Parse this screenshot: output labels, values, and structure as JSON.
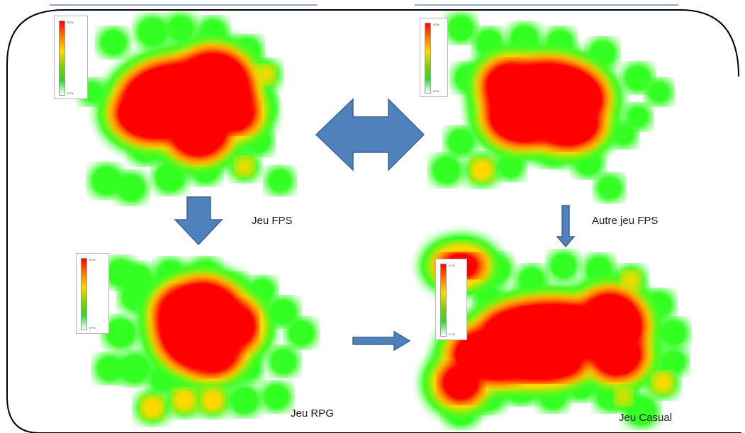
{
  "colors": {
    "frame": "#000000",
    "arrow_fill": "#4f81bd",
    "arrow_stroke": "#3a6496",
    "heat_low": "#33ff22",
    "heat_mid": "#ffd800",
    "heat_high": "#ff0000"
  },
  "panels": [
    {
      "id": "fps",
      "caption": "Jeu FPS",
      "scale_top": "5 Fix",
      "scale_bottom": "0 Fix"
    },
    {
      "id": "other-fps",
      "caption": "Autre jeu FPS",
      "scale_top": "5 Fix",
      "scale_bottom": "0 Fix"
    },
    {
      "id": "rpg",
      "caption": "Jeu RPG",
      "scale_top": "5 Fix",
      "scale_bottom": "0 Fix"
    },
    {
      "id": "casual",
      "caption": "Jeu Casual",
      "scale_top": "5 Fix",
      "scale_bottom": "0 Fix"
    }
  ]
}
